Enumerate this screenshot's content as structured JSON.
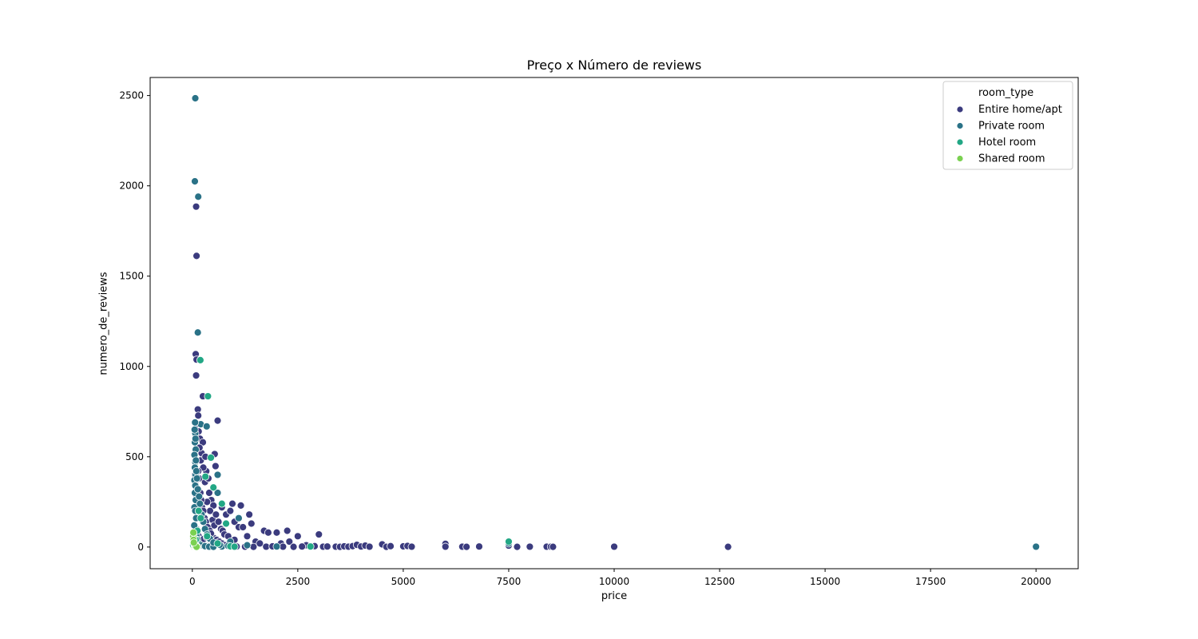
{
  "chart_data": {
    "type": "scatter",
    "title": "Preço x Número de reviews",
    "xlabel": "price",
    "ylabel": "numero_de_reviews",
    "xlim": [
      -1000,
      21000
    ],
    "ylim": [
      -120,
      2600
    ],
    "xticks": [
      0,
      2500,
      5000,
      7500,
      10000,
      12500,
      15000,
      17500,
      20000
    ],
    "yticks": [
      0,
      500,
      1000,
      1500,
      2000,
      2500
    ],
    "grid": false,
    "legend": {
      "title": "room_type",
      "placement": "top-right"
    },
    "series": [
      {
        "name": "Entire home/apt",
        "color": "#3b3b7e",
        "points": [
          [
            90,
            1885
          ],
          [
            100,
            1612
          ],
          [
            80,
            1068
          ],
          [
            100,
            1038
          ],
          [
            90,
            950
          ],
          [
            130,
            762
          ],
          [
            140,
            728
          ],
          [
            600,
            700
          ],
          [
            250,
            835
          ],
          [
            530,
            515
          ],
          [
            550,
            448
          ],
          [
            600,
            300
          ],
          [
            200,
            480
          ],
          [
            300,
            360
          ],
          [
            400,
            300
          ],
          [
            180,
            600
          ],
          [
            220,
            520
          ],
          [
            330,
            420
          ],
          [
            120,
            680
          ],
          [
            150,
            640
          ],
          [
            250,
            580
          ],
          [
            310,
            500
          ],
          [
            170,
            550
          ],
          [
            260,
            440
          ],
          [
            380,
            380
          ],
          [
            450,
            260
          ],
          [
            500,
            230
          ],
          [
            700,
            220
          ],
          [
            800,
            180
          ],
          [
            900,
            200
          ],
          [
            950,
            240
          ],
          [
            1000,
            140
          ],
          [
            1100,
            110
          ],
          [
            1150,
            230
          ],
          [
            1200,
            110
          ],
          [
            1350,
            180
          ],
          [
            1400,
            130
          ],
          [
            1700,
            90
          ],
          [
            1800,
            80
          ],
          [
            2000,
            80
          ],
          [
            2250,
            90
          ],
          [
            2500,
            60
          ],
          [
            3000,
            70
          ],
          [
            350,
            250
          ],
          [
            420,
            200
          ],
          [
            480,
            150
          ],
          [
            520,
            120
          ],
          [
            560,
            180
          ],
          [
            620,
            140
          ],
          [
            680,
            100
          ],
          [
            720,
            90
          ],
          [
            760,
            70
          ],
          [
            850,
            60
          ],
          [
            1000,
            40
          ],
          [
            1300,
            60
          ],
          [
            1500,
            30
          ],
          [
            1600,
            20
          ],
          [
            2100,
            20
          ],
          [
            2300,
            30
          ],
          [
            2700,
            10
          ],
          [
            2900,
            5
          ],
          [
            3100,
            2
          ],
          [
            3200,
            3
          ],
          [
            3400,
            2
          ],
          [
            3500,
            1
          ],
          [
            3600,
            4
          ],
          [
            3700,
            2
          ],
          [
            3800,
            5
          ],
          [
            3900,
            12
          ],
          [
            4000,
            3
          ],
          [
            4100,
            8
          ],
          [
            4200,
            2
          ],
          [
            4500,
            15
          ],
          [
            4600,
            1
          ],
          [
            4700,
            5
          ],
          [
            5000,
            4
          ],
          [
            5100,
            6
          ],
          [
            5200,
            2
          ],
          [
            6000,
            18
          ],
          [
            6000,
            2
          ],
          [
            6400,
            2
          ],
          [
            6500,
            1
          ],
          [
            6800,
            3
          ],
          [
            7500,
            8
          ],
          [
            7700,
            1
          ],
          [
            8000,
            2
          ],
          [
            8400,
            2
          ],
          [
            8500,
            2
          ],
          [
            8550,
            1
          ],
          [
            10000,
            2
          ],
          [
            12700,
            1
          ],
          [
            50,
            300
          ],
          [
            60,
            400
          ],
          [
            70,
            350
          ],
          [
            100,
            280
          ],
          [
            140,
            420
          ],
          [
            160,
            380
          ],
          [
            190,
            300
          ],
          [
            210,
            260
          ],
          [
            230,
            220
          ],
          [
            260,
            200
          ],
          [
            290,
            160
          ],
          [
            320,
            140
          ],
          [
            360,
            110
          ],
          [
            410,
            90
          ],
          [
            460,
            70
          ],
          [
            510,
            50
          ],
          [
            580,
            40
          ],
          [
            640,
            30
          ],
          [
            700,
            20
          ],
          [
            780,
            10
          ],
          [
            900,
            5
          ],
          [
            1050,
            3
          ],
          [
            1250,
            2
          ],
          [
            1450,
            1
          ],
          [
            1750,
            2
          ],
          [
            1900,
            4
          ],
          [
            2150,
            2
          ],
          [
            2400,
            1
          ],
          [
            2600,
            3
          ],
          [
            100,
            100
          ],
          [
            120,
            80
          ],
          [
            150,
            60
          ],
          [
            200,
            40
          ],
          [
            250,
            20
          ],
          [
            300,
            10
          ],
          [
            350,
            5
          ],
          [
            30,
            2
          ],
          [
            40,
            5
          ],
          [
            60,
            1
          ],
          [
            80,
            3
          ],
          [
            110,
            7
          ],
          [
            140,
            12
          ],
          [
            170,
            18
          ],
          [
            200,
            25
          ],
          [
            240,
            35
          ],
          [
            270,
            45
          ],
          [
            340,
            55
          ],
          [
            390,
            65
          ],
          [
            440,
            75
          ]
        ]
      },
      {
        "name": "Private room",
        "color": "#2a7287",
        "points": [
          [
            70,
            2485
          ],
          [
            60,
            2025
          ],
          [
            140,
            1940
          ],
          [
            130,
            1188
          ],
          [
            200,
            680
          ],
          [
            340,
            668
          ],
          [
            600,
            400
          ],
          [
            600,
            300
          ],
          [
            70,
            630
          ],
          [
            60,
            580
          ],
          [
            80,
            540
          ],
          [
            50,
            510
          ],
          [
            70,
            470
          ],
          [
            60,
            440
          ],
          [
            80,
            400
          ],
          [
            50,
            370
          ],
          [
            70,
            340
          ],
          [
            60,
            300
          ],
          [
            80,
            260
          ],
          [
            50,
            220
          ],
          [
            70,
            200
          ],
          [
            90,
            160
          ],
          [
            60,
            120
          ],
          [
            80,
            90
          ],
          [
            100,
            60
          ],
          [
            120,
            40
          ],
          [
            150,
            20
          ],
          [
            200,
            10
          ],
          [
            300,
            5
          ],
          [
            400,
            2
          ],
          [
            500,
            1
          ],
          [
            700,
            3
          ],
          [
            1100,
            160
          ],
          [
            800,
            130
          ],
          [
            900,
            30
          ],
          [
            1300,
            10
          ],
          [
            2000,
            3
          ],
          [
            7500,
            20
          ],
          [
            20000,
            2
          ],
          [
            20,
            50
          ],
          [
            30,
            30
          ],
          [
            40,
            80
          ],
          [
            45,
            120
          ],
          [
            55,
            650
          ],
          [
            65,
            690
          ],
          [
            75,
            600
          ],
          [
            85,
            480
          ],
          [
            95,
            420
          ],
          [
            110,
            380
          ],
          [
            130,
            320
          ],
          [
            160,
            280
          ],
          [
            180,
            240
          ],
          [
            220,
            180
          ],
          [
            260,
            140
          ],
          [
            300,
            100
          ],
          [
            350,
            70
          ],
          [
            420,
            45
          ],
          [
            500,
            25
          ],
          [
            650,
            12
          ],
          [
            850,
            6
          ]
        ]
      },
      {
        "name": "Hotel room",
        "color": "#22a785",
        "points": [
          [
            190,
            1035
          ],
          [
            370,
            835
          ],
          [
            440,
            495
          ],
          [
            310,
            390
          ],
          [
            500,
            330
          ],
          [
            700,
            240
          ],
          [
            200,
            160
          ],
          [
            800,
            130
          ],
          [
            120,
            90
          ],
          [
            80,
            40
          ],
          [
            20,
            10
          ],
          [
            900,
            4
          ],
          [
            2800,
            3
          ],
          [
            7500,
            30
          ],
          [
            350,
            60
          ],
          [
            600,
            20
          ],
          [
            1000,
            2
          ],
          [
            150,
            200
          ]
        ]
      },
      {
        "name": "Shared room",
        "color": "#7ad151",
        "points": [
          [
            20,
            60
          ],
          [
            30,
            40
          ],
          [
            40,
            20
          ],
          [
            50,
            10
          ],
          [
            60,
            5
          ],
          [
            80,
            3
          ],
          [
            120,
            2
          ],
          [
            100,
            1
          ],
          [
            35,
            25
          ],
          [
            25,
            80
          ]
        ]
      }
    ]
  }
}
